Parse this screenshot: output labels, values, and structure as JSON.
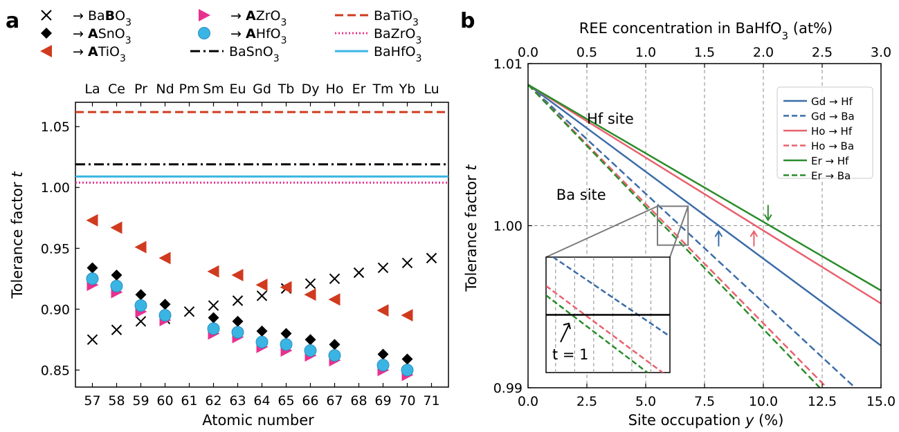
{
  "panel_labels": {
    "a": "a",
    "b": "b"
  },
  "colors": {
    "BaTiO3": "#d03a1e",
    "BaZrO3": "#e8318e",
    "BaSnO3": "#000000",
    "BaHfO3": "#3ab4e3",
    "Gd": "#3a6ca8",
    "Ho": "#e8616e",
    "Er": "#2a8c2a",
    "grid": "#8a8a8a"
  },
  "chart_data": [
    {
      "type": "scatter",
      "panel": "a",
      "xlabel": "Atomic number",
      "ylabel": "Tolerance factor t",
      "x_ticks": [
        "57",
        "58",
        "59",
        "60",
        "61",
        "62",
        "63",
        "64",
        "65",
        "66",
        "67",
        "68",
        "69",
        "70",
        "71"
      ],
      "top_ticks": [
        "La",
        "Ce",
        "Pr",
        "Nd",
        "Pm",
        "Sm",
        "Eu",
        "Gd",
        "Tb",
        "Dy",
        "Ho",
        "Er",
        "Tm",
        "Yb",
        "Lu"
      ],
      "y_ticks": [
        "0.85",
        "0.90",
        "0.95",
        "1.00",
        "1.05"
      ],
      "xlim": [
        56.3,
        71.7
      ],
      "ylim": [
        0.836,
        1.07
      ],
      "legend": [
        {
          "key": "BaBO3",
          "pre": "→ Ba",
          "bold": "B",
          "post": "O",
          "sub": "3",
          "marker": "x"
        },
        {
          "key": "ASnO3",
          "pre": "→ ",
          "bold": "A",
          "post": "SnO",
          "sub": "3",
          "marker": "diamond"
        },
        {
          "key": "ATiO3",
          "pre": "→ ",
          "bold": "A",
          "post": "TiO",
          "sub": "3",
          "marker": "tri-left"
        },
        {
          "key": "AZrO3",
          "pre": "→ ",
          "bold": "A",
          "post": "ZrO",
          "sub": "3",
          "marker": "tri-right"
        },
        {
          "key": "AHfO3",
          "pre": "→ ",
          "bold": "A",
          "post": "HfO",
          "sub": "3",
          "marker": "circle"
        },
        {
          "key": "BaSnO3_line",
          "pre": "BaSnO",
          "bold": "",
          "post": "",
          "sub": "3",
          "marker": "dashdot"
        },
        {
          "key": "BaTiO3_line",
          "pre": "BaTiO",
          "bold": "",
          "post": "",
          "sub": "3",
          "marker": "dashed"
        },
        {
          "key": "BaZrO3_line",
          "pre": "BaZrO",
          "bold": "",
          "post": "",
          "sub": "3",
          "marker": "dotted"
        },
        {
          "key": "BaHfO3_line",
          "pre": "BaHfO",
          "bold": "",
          "post": "",
          "sub": "3",
          "marker": "solid"
        }
      ],
      "hlines": {
        "BaTiO3": 1.062,
        "BaSnO3": 1.019,
        "BaHfO3": 1.009,
        "BaZrO3": 1.004
      },
      "series": [
        {
          "name": "BaBO3",
          "marker": "x",
          "x": [
            57,
            58,
            59,
            60,
            61,
            62,
            63,
            64,
            65,
            66,
            67,
            68,
            69,
            70,
            71
          ],
          "y": [
            0.875,
            0.883,
            0.89,
            0.892,
            0.898,
            0.903,
            0.907,
            0.911,
            0.917,
            0.921,
            0.925,
            0.93,
            0.934,
            0.938,
            0.942
          ]
        },
        {
          "name": "ATiO3",
          "marker": "tri-left",
          "x": [
            57,
            58,
            59,
            60,
            62,
            63,
            64,
            65,
            66,
            67,
            69,
            70
          ],
          "y": [
            0.973,
            0.967,
            0.951,
            0.942,
            0.931,
            0.928,
            0.92,
            0.918,
            0.912,
            0.908,
            0.899,
            0.895
          ]
        },
        {
          "name": "ASnO3",
          "marker": "diamond",
          "x": [
            57,
            58,
            59,
            60,
            62,
            63,
            64,
            65,
            66,
            67,
            69,
            70
          ],
          "y": [
            0.934,
            0.928,
            0.912,
            0.904,
            0.893,
            0.89,
            0.882,
            0.88,
            0.875,
            0.871,
            0.863,
            0.859
          ]
        },
        {
          "name": "AZrO3",
          "marker": "tri-right",
          "x": [
            57,
            58,
            59,
            60,
            62,
            63,
            64,
            65,
            66,
            67,
            69,
            70
          ],
          "y": [
            0.92,
            0.914,
            0.898,
            0.891,
            0.88,
            0.877,
            0.869,
            0.866,
            0.862,
            0.858,
            0.85,
            0.846
          ]
        },
        {
          "name": "AHfO3",
          "marker": "circle",
          "x": [
            57,
            58,
            59,
            60,
            62,
            63,
            64,
            65,
            66,
            67,
            69,
            70
          ],
          "y": [
            0.925,
            0.919,
            0.903,
            0.895,
            0.884,
            0.881,
            0.873,
            0.871,
            0.866,
            0.862,
            0.854,
            0.85
          ]
        }
      ]
    },
    {
      "type": "line",
      "panel": "b",
      "xlabel": "Site occupation y (%)",
      "ylabel": "Tolerance factor t",
      "top_label": "REE concentration in BaHfO3 (at%)",
      "x_ticks": [
        "0.0",
        "2.5",
        "5.0",
        "7.5",
        "10.0",
        "12.5",
        "15.0"
      ],
      "top_ticks": [
        "0.0",
        "0.5",
        "1.0",
        "1.5",
        "2.0",
        "2.5",
        "3.0"
      ],
      "y_ticks": [
        "0.99",
        "1.00",
        "1.01"
      ],
      "xlim": [
        0,
        15
      ],
      "ylim": [
        0.99,
        1.01
      ],
      "series": [
        {
          "name": "Gd → Hf",
          "color": "Gd",
          "style": "solid",
          "x": [
            0,
            15
          ],
          "y": [
            1.0087,
            0.9926
          ]
        },
        {
          "name": "Gd → Ba",
          "color": "Gd",
          "style": "dashed",
          "x": [
            0,
            13.9
          ],
          "y": [
            1.0087,
            0.99
          ]
        },
        {
          "name": "Ho → Hf",
          "color": "Ho",
          "style": "solid",
          "x": [
            0,
            15
          ],
          "y": [
            1.0087,
            0.9952
          ]
        },
        {
          "name": "Ho → Ba",
          "color": "Ho",
          "style": "dashed",
          "x": [
            0,
            12.7
          ],
          "y": [
            1.0087,
            0.99
          ]
        },
        {
          "name": "Er → Hf",
          "color": "Er",
          "style": "solid",
          "x": [
            0,
            15
          ],
          "y": [
            1.0087,
            0.996
          ]
        },
        {
          "name": "Er → Ba",
          "color": "Er",
          "style": "dashed",
          "x": [
            0,
            12.4
          ],
          "y": [
            1.0087,
            0.99
          ]
        }
      ],
      "annotations": {
        "hf_site": "Hf site",
        "ba_site": "Ba site",
        "t_equals_1": "t = 1"
      },
      "arrows": [
        {
          "color": "Gd",
          "x": 8.1,
          "y": 1.0
        },
        {
          "color": "Ho",
          "x": 9.6,
          "y": 1.0
        },
        {
          "color": "Er",
          "x": 10.2,
          "y": 1.0
        }
      ],
      "zoom_region": {
        "x": [
          5.5,
          6.8
        ],
        "y": [
          0.9988,
          1.0012
        ]
      }
    }
  ]
}
